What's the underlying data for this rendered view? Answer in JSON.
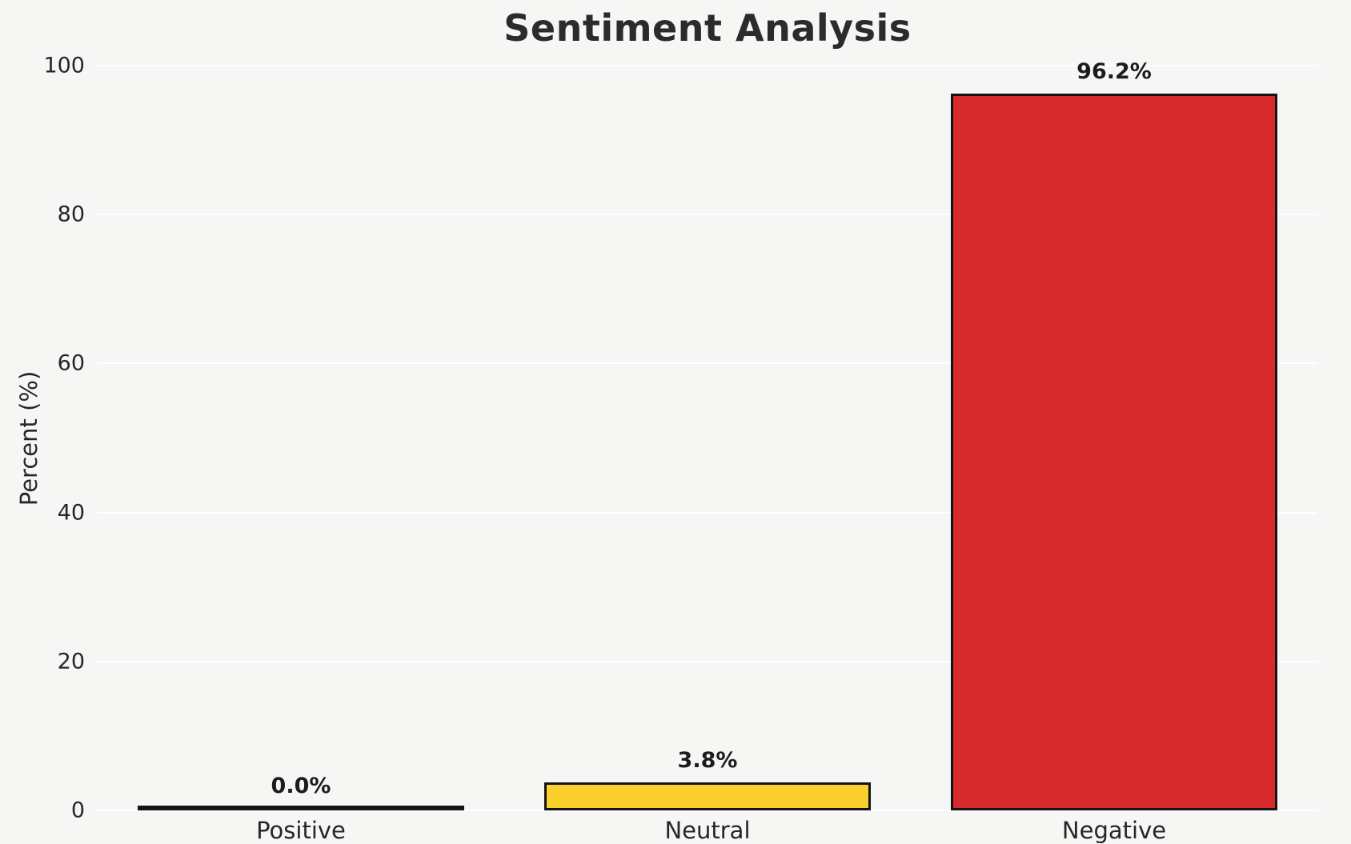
{
  "chart_data": {
    "type": "bar",
    "title": "Sentiment Analysis",
    "xlabel": "",
    "ylabel": "Percent (%)",
    "categories": [
      "Positive",
      "Neutral",
      "Negative"
    ],
    "values": [
      0.0,
      3.8,
      96.2
    ],
    "value_labels": [
      "0.0%",
      "3.8%",
      "96.2%"
    ],
    "bar_colors": [
      "#f6f6f4",
      "#FCD02C",
      "#D62A2C"
    ],
    "bar_edge_color": "#141414",
    "ylim": [
      0,
      100
    ],
    "yticks": [
      0,
      20,
      40,
      60,
      80,
      100
    ],
    "grid": "horizontal-white",
    "background_color": "#f6f6f4",
    "legend": "none"
  }
}
